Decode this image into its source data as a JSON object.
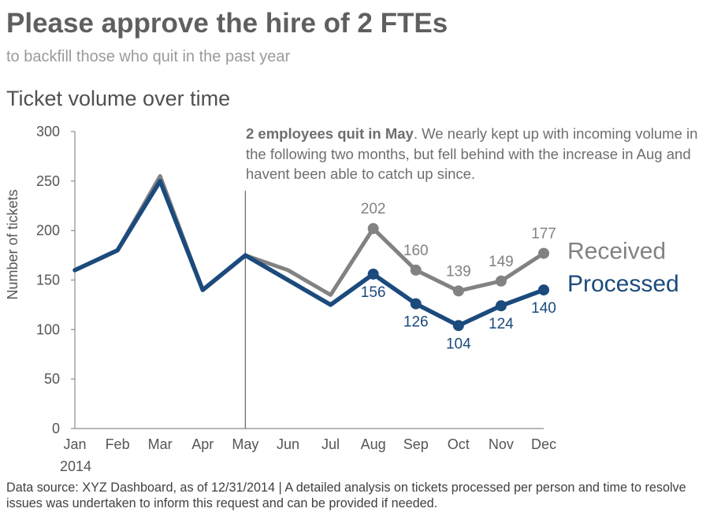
{
  "header": {
    "title": "Please approve the hire of 2 FTEs",
    "subtitle": "to backfill those who quit in the past year"
  },
  "annotation": {
    "bold": "2 employees quit in May",
    "text": ". We nearly kept up with incoming volume in the following two months, but fell behind with the increase in Aug and havent been able to catch up since."
  },
  "footer": {
    "text": "Data source: XYZ Dashboard, as of 12/31/2014 | A detailed analysis on tickets processed per person and time to resolve issues was undertaken to inform this request and can be provided if needed."
  },
  "chart_data": {
    "type": "line",
    "title": "Ticket volume over time",
    "xlabel": "2014",
    "ylabel": "Number of tickets",
    "categories": [
      "Jan",
      "Feb",
      "Mar",
      "Apr",
      "May",
      "Jun",
      "Jul",
      "Aug",
      "Sep",
      "Oct",
      "Nov",
      "Dec"
    ],
    "ylim": [
      0,
      300
    ],
    "yticks": [
      0,
      50,
      100,
      150,
      200,
      250,
      300
    ],
    "grid": false,
    "reference_line": {
      "category": "May"
    },
    "series": [
      {
        "name": "Received",
        "color": "#828282",
        "values": [
          160,
          180,
          255,
          140,
          175,
          160,
          135,
          202,
          160,
          139,
          149,
          177
        ],
        "labeled_from": "Aug"
      },
      {
        "name": "Processed",
        "color": "#1b4a7c",
        "values": [
          160,
          180,
          250,
          140,
          175,
          150,
          125,
          156,
          126,
          104,
          124,
          140
        ],
        "labeled_from": "Aug"
      }
    ]
  }
}
